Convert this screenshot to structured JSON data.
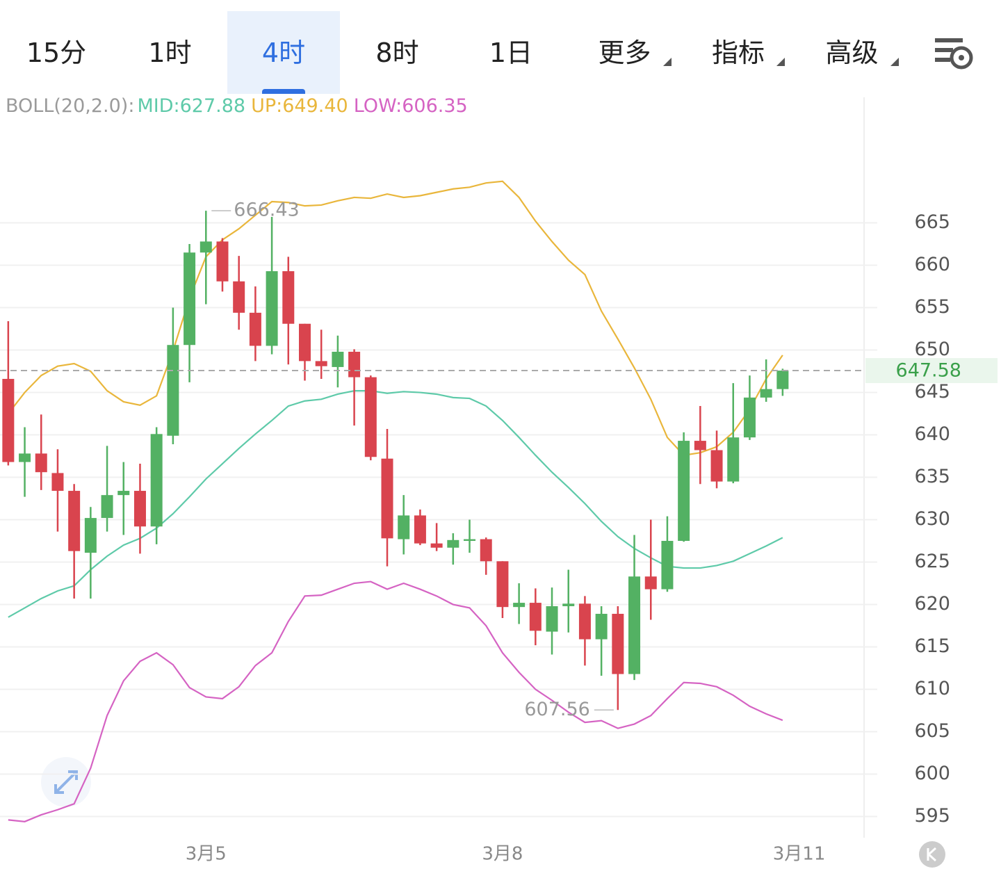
{
  "toolbar": {
    "tabs": [
      "15分",
      "1时",
      "4时",
      "8时",
      "1日",
      "更多",
      "指标",
      "高级"
    ],
    "active": 2
  },
  "chart_data": {
    "type": "candlestick",
    "indicator": "BOLL(20,2.0):",
    "x": [
      0,
      1,
      2,
      3,
      4,
      5,
      6,
      7,
      8,
      9,
      10,
      11,
      12,
      13,
      14,
      15,
      16,
      17,
      18,
      19,
      20,
      21,
      22,
      23,
      24,
      25,
      26,
      27,
      28,
      29,
      30,
      31,
      32,
      33,
      34,
      35,
      36,
      37,
      38,
      39,
      40,
      41,
      42,
      43,
      44,
      45,
      46,
      47
    ],
    "open": [
      646.6,
      636.8,
      637.8,
      635.5,
      633.4,
      626.1,
      630.2,
      632.9,
      633.4,
      629.2,
      639.9,
      650.6,
      661.5,
      662.8,
      658.1,
      654.4,
      650.5,
      659.3,
      653.1,
      648.7,
      648.0,
      649.8,
      646.8,
      637.2,
      627.7,
      630.5,
      627.2,
      626.7,
      627.5,
      627.7,
      625.1,
      619.7,
      620.2,
      616.8,
      619.8,
      620.1,
      615.9,
      618.9,
      611.8,
      623.3,
      621.8,
      627.5,
      639.3,
      638.2,
      634.5,
      639.7,
      644.4,
      645.4
    ],
    "high": [
      653.4,
      640.9,
      642.4,
      638.3,
      634.2,
      631.5,
      638.7,
      636.8,
      636.6,
      640.9,
      655.0,
      662.5,
      666.43,
      663.2,
      661.1,
      657.5,
      665.7,
      661.0,
      653.1,
      652.4,
      651.7,
      650.1,
      647.0,
      640.7,
      632.9,
      631.2,
      629.6,
      628.4,
      630.0,
      627.9,
      625.1,
      622.5,
      621.9,
      622.0,
      624.1,
      621.0,
      619.8,
      619.8,
      628.2,
      630.0,
      630.4,
      640.3,
      643.4,
      640.5,
      646.1,
      647.0,
      648.9,
      647.8
    ],
    "low": [
      636.4,
      632.7,
      633.5,
      628.6,
      620.7,
      620.7,
      628.6,
      628.2,
      626.0,
      627.1,
      638.9,
      646.2,
      655.4,
      656.9,
      652.4,
      648.7,
      649.5,
      648.3,
      646.4,
      646.6,
      645.6,
      641.1,
      637.0,
      624.5,
      625.9,
      627.0,
      626.3,
      624.7,
      626.1,
      623.5,
      618.4,
      617.7,
      615.2,
      614.1,
      616.7,
      612.8,
      611.6,
      607.56,
      611.1,
      618.2,
      621.5,
      627.4,
      634.2,
      633.7,
      634.3,
      639.4,
      643.9,
      644.6
    ],
    "close": [
      636.8,
      637.8,
      635.6,
      633.4,
      626.3,
      630.2,
      632.9,
      633.4,
      629.2,
      640.1,
      650.6,
      661.5,
      662.8,
      658.1,
      654.4,
      650.5,
      659.3,
      653.1,
      648.7,
      648.1,
      649.8,
      646.8,
      637.4,
      627.8,
      630.5,
      627.2,
      626.7,
      627.6,
      627.7,
      625.1,
      619.7,
      620.2,
      616.9,
      619.8,
      620.1,
      615.9,
      618.9,
      611.8,
      623.3,
      621.8,
      627.5,
      639.3,
      638.2,
      634.5,
      639.7,
      644.4,
      645.4,
      647.58
    ],
    "up_color": "#53b163",
    "down_color": "#d9444e",
    "series": [
      {
        "name": "MID:627.88",
        "color": "#5ecaa9",
        "values": [
          618.5,
          619.6,
          620.7,
          621.6,
          622.2,
          624.1,
          625.7,
          627.0,
          627.8,
          629.0,
          630.7,
          632.7,
          634.8,
          636.6,
          638.4,
          640.1,
          641.7,
          643.4,
          644.0,
          644.2,
          644.8,
          645.2,
          645.2,
          644.9,
          645.1,
          645.0,
          644.8,
          644.4,
          644.3,
          643.4,
          641.7,
          639.7,
          637.6,
          635.6,
          633.8,
          631.9,
          629.8,
          628.0,
          626.6,
          625.5,
          624.5,
          624.3,
          624.3,
          624.6,
          625.1,
          626.0,
          626.9,
          627.88
        ]
      },
      {
        "name": "UP:649.40",
        "color": "#e9b63b",
        "values": [
          642.5,
          645.0,
          647.0,
          648.1,
          648.4,
          647.5,
          645.2,
          643.9,
          643.5,
          644.6,
          649.9,
          656.1,
          661.0,
          663.0,
          664.3,
          665.9,
          667.5,
          667.4,
          667.0,
          667.1,
          667.6,
          668.0,
          667.9,
          668.4,
          668.0,
          668.2,
          668.6,
          669.0,
          669.2,
          669.7,
          669.9,
          668.0,
          665.2,
          662.8,
          660.6,
          658.9,
          654.6,
          651.3,
          647.9,
          644.2,
          639.7,
          637.6,
          637.9,
          638.6,
          640.3,
          643.0,
          646.6,
          649.4
        ]
      },
      {
        "name": "LOW:606.35",
        "color": "#d563c3",
        "values": [
          594.6,
          594.4,
          595.2,
          595.8,
          596.5,
          600.7,
          606.9,
          611.0,
          613.3,
          614.3,
          612.9,
          610.2,
          609.1,
          608.9,
          610.3,
          612.8,
          614.3,
          618.0,
          621.0,
          621.1,
          621.8,
          622.5,
          622.7,
          621.8,
          622.5,
          621.8,
          621.0,
          620.0,
          619.6,
          617.5,
          614.3,
          612.0,
          610.0,
          608.7,
          607.3,
          606.1,
          606.3,
          605.4,
          605.9,
          606.9,
          608.9,
          610.8,
          610.7,
          610.3,
          609.3,
          608.0,
          607.1,
          606.35
        ]
      }
    ],
    "ylim": [
      592.5,
      679.8
    ],
    "yticks": [
      595,
      600,
      605,
      610,
      615,
      620,
      625,
      630,
      635,
      640,
      645,
      650,
      655,
      660,
      665
    ],
    "xlim": [
      -0.5,
      51.9
    ],
    "xticks": [
      {
        "value": 12,
        "label": "3月5"
      },
      {
        "value": 30,
        "label": "3月8"
      },
      {
        "value": 48,
        "label": "3月11"
      }
    ],
    "grid": true
  }
}
